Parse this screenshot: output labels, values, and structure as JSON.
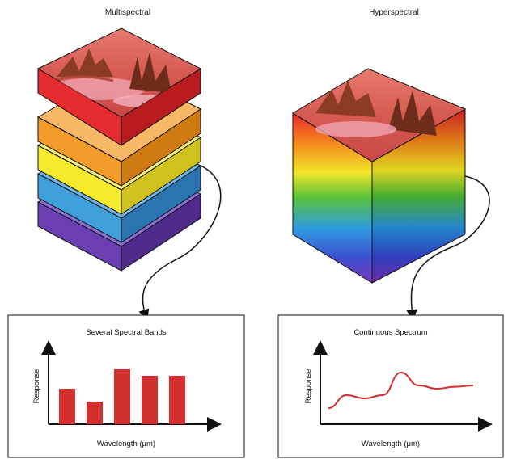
{
  "titles": {
    "left": "Multispectral",
    "right": "Hyperspectral"
  },
  "panels": {
    "left": {
      "title": "Several Spectral Bands",
      "xlabel": "Wavelength (μm)",
      "ylabel": "Response"
    },
    "right": {
      "title": "Continuous Spectrum",
      "xlabel": "Wavelength (μm)",
      "ylabel": "Response"
    }
  },
  "colors": {
    "bands": [
      "#e52b2e",
      "#f39c2a",
      "#f5ea2c",
      "#3f9fd9",
      "#6b3fb3"
    ],
    "bar": "#d32f2f",
    "curve": "#d32f2f"
  },
  "chart_data": [
    {
      "type": "bar",
      "title": "Several Spectral Bands",
      "xlabel": "Wavelength (μm)",
      "ylabel": "Response",
      "values": [
        0.55,
        0.35,
        0.85,
        0.75,
        0.75
      ]
    },
    {
      "type": "line",
      "title": "Continuous Spectrum",
      "xlabel": "Wavelength (μm)",
      "ylabel": "Response",
      "values": [
        0.25,
        0.45,
        0.4,
        0.45,
        0.8,
        0.6,
        0.55,
        0.58,
        0.6
      ]
    }
  ]
}
